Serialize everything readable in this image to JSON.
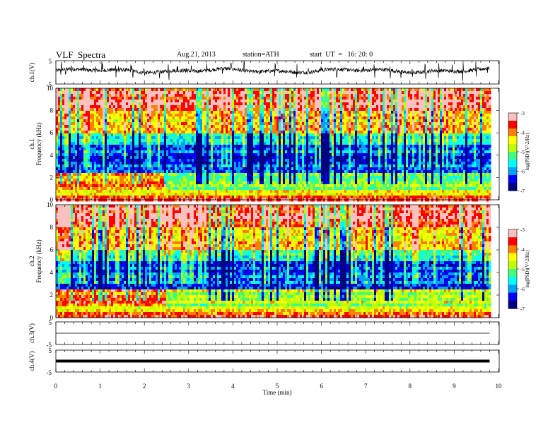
{
  "header": {
    "title": "VLF  Spectra",
    "date": "Aug.21, 2013",
    "station": "station=ATH",
    "start": "start  UT  =   16: 20: 0"
  },
  "chart_data": [
    {
      "type": "line",
      "panel": "ch1-waveform",
      "ylabel": "ch.1(V)",
      "ylim": [
        -5,
        5
      ],
      "yticks": [
        "5",
        "-5"
      ],
      "xlim": [
        0,
        10
      ],
      "series": [
        {
          "values_description_note": ""
        }
      ],
      "baseline": 0.5,
      "spike_positions_min": [
        0.12,
        0.22,
        0.35,
        0.62,
        0.9,
        1.05,
        1.35,
        1.42,
        1.7,
        1.73,
        2.0,
        2.35,
        2.55,
        2.75,
        2.95,
        3.05,
        3.4,
        3.75,
        3.95,
        4.25,
        4.6,
        4.95,
        5.2,
        5.45,
        5.7,
        6.0,
        6.35,
        6.6,
        6.95,
        7.2,
        7.55,
        7.8,
        8.05,
        8.35,
        8.65,
        8.95,
        9.2,
        9.5,
        9.75
      ]
    },
    {
      "type": "heatmap",
      "panel": "ch1-spectrogram",
      "channel": "ch.1",
      "ylabel": "Frequency  (kHz)",
      "ylim": [
        0,
        10
      ],
      "yticks": [
        "0",
        "2",
        "4",
        "6",
        "8",
        "10"
      ],
      "xlim": [
        0,
        9.8
      ],
      "colorbar": {
        "label": "log(PSD)(V^2/Hz)",
        "range": [
          -7,
          -3
        ],
        "ticks": [
          "-3",
          "-4",
          "-5",
          "-6",
          "-7"
        ]
      }
    },
    {
      "type": "heatmap",
      "panel": "ch2-spectrogram",
      "channel": "ch.2",
      "ylabel": "Frequency  (kHz)",
      "ylim": [
        0,
        10
      ],
      "yticks": [
        "0",
        "2",
        "4",
        "6",
        "8",
        "10"
      ],
      "xlim": [
        0,
        9.8
      ],
      "colorbar": {
        "label": "log(PSD)(V^2/Hz)",
        "range": [
          -7,
          -3
        ],
        "ticks": [
          "-3",
          "-4",
          "-5",
          "-6",
          "-7"
        ]
      }
    },
    {
      "type": "line",
      "panel": "ch3-waveform",
      "ylabel": "ch.3(V)",
      "ylim": [
        -5,
        5
      ],
      "yticks": [
        "5",
        "-5"
      ],
      "xlim": [
        0,
        10
      ],
      "baseline": 0
    },
    {
      "type": "line",
      "panel": "ch4-waveform",
      "ylabel": "ch.4(V)",
      "ylim": [
        -5,
        5
      ],
      "yticks": [
        "5",
        "-5"
      ],
      "xlim": [
        0,
        10
      ],
      "baseline": 0,
      "xlabel": "Time  (min)",
      "xticks": [
        "0",
        "1",
        "2",
        "3",
        "4",
        "5",
        "6",
        "7",
        "8",
        "9",
        "10"
      ]
    }
  ],
  "colors": {
    "scale": [
      "#000080",
      "#0000ff",
      "#00a0ff",
      "#00ffff",
      "#40ff80",
      "#c0ff00",
      "#ffff00",
      "#ff8000",
      "#ff0000",
      "#ffc0c0"
    ]
  }
}
